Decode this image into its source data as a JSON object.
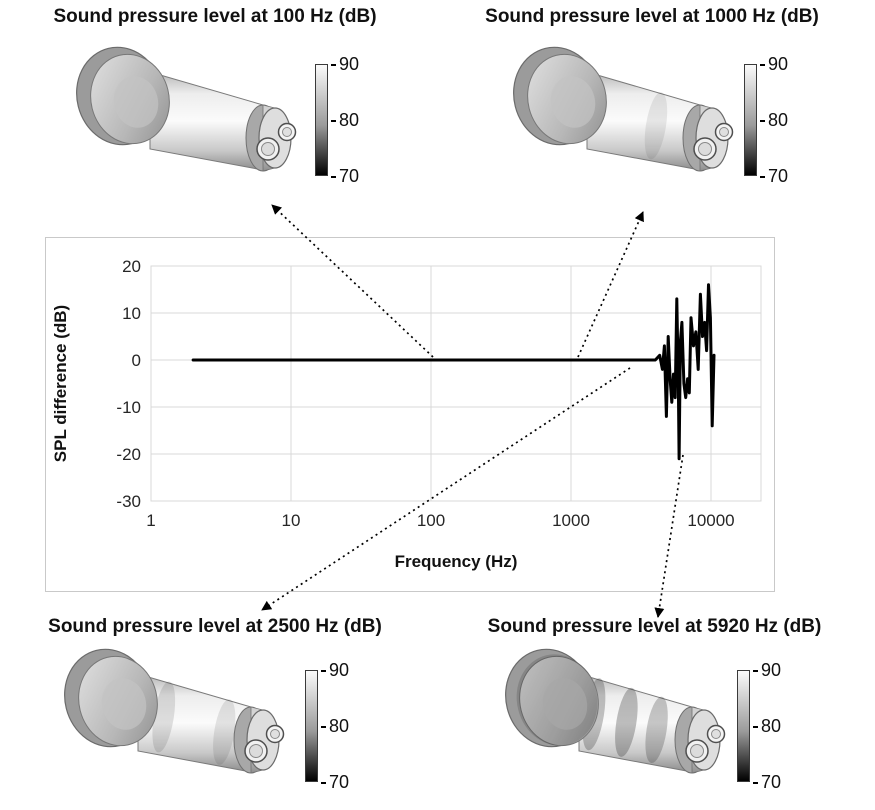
{
  "figure": {
    "panels": [
      {
        "title": "Sound pressure level at 100 Hz (dB)",
        "colorbar_ticks": [
          "90",
          "80",
          "70"
        ]
      },
      {
        "title": "Sound pressure level at 1000 Hz (dB)",
        "colorbar_ticks": [
          "90",
          "80",
          "70"
        ]
      },
      {
        "title": "Sound pressure level at 2500 Hz (dB)",
        "colorbar_ticks": [
          "90",
          "80",
          "70"
        ]
      },
      {
        "title": "Sound pressure level at 5920 Hz (dB)",
        "colorbar_ticks": [
          "90",
          "80",
          "70"
        ]
      }
    ],
    "colors": {
      "line": "#000000",
      "grid": "#d9d9d9",
      "chart_border": "#c9c9c9",
      "colorbar_top": "#fbfbfb",
      "colorbar_mid": "#9a9a9a",
      "colorbar_bottom": "#000000"
    }
  },
  "chart_data": {
    "type": "line",
    "title": "",
    "xlabel": "Frequency (Hz)",
    "ylabel": "SPL difference (dB)",
    "x_scale": "log",
    "xlim": [
      1,
      20000
    ],
    "ylim": [
      -30,
      20
    ],
    "x_ticks": [
      1,
      10,
      100,
      1000,
      10000
    ],
    "y_ticks": [
      20,
      10,
      0,
      -10,
      -20,
      -30
    ],
    "grid": true,
    "legend": false,
    "series": [
      {
        "name": "SPL difference",
        "points": [
          [
            2,
            0
          ],
          [
            500,
            0
          ],
          [
            2000,
            0
          ],
          [
            4000,
            0
          ],
          [
            4300,
            1
          ],
          [
            4500,
            -2
          ],
          [
            4650,
            3
          ],
          [
            4800,
            -12
          ],
          [
            4950,
            5
          ],
          [
            5100,
            -4
          ],
          [
            5250,
            -9
          ],
          [
            5400,
            -3
          ],
          [
            5550,
            -8
          ],
          [
            5700,
            13
          ],
          [
            5850,
            -6
          ],
          [
            5920,
            -21
          ],
          [
            6050,
            4
          ],
          [
            6200,
            8
          ],
          [
            6400,
            -5
          ],
          [
            6600,
            -8
          ],
          [
            6800,
            -4
          ],
          [
            7000,
            -7
          ],
          [
            7200,
            9
          ],
          [
            7500,
            3
          ],
          [
            7800,
            6
          ],
          [
            8100,
            -2
          ],
          [
            8400,
            14
          ],
          [
            8700,
            5
          ],
          [
            9000,
            8
          ],
          [
            9300,
            2
          ],
          [
            9600,
            16
          ],
          [
            9900,
            9
          ],
          [
            10200,
            -14
          ],
          [
            10500,
            1
          ]
        ]
      }
    ]
  }
}
